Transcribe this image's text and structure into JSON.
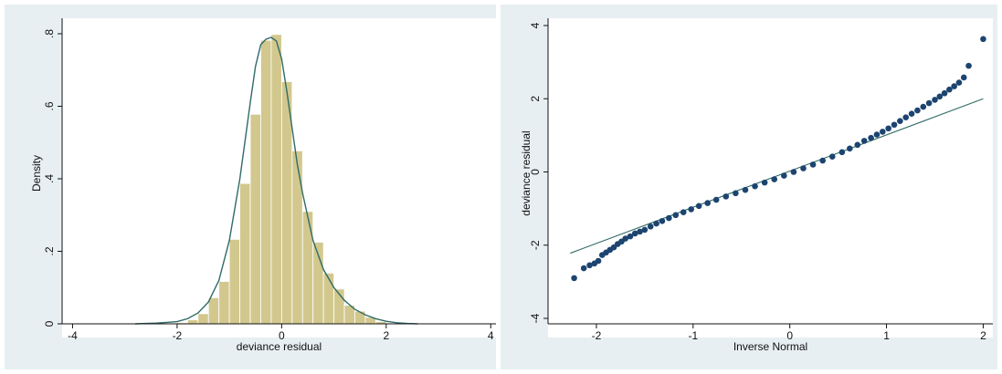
{
  "chart_data": [
    {
      "type": "bar",
      "subtype": "histogram-with-density-curve",
      "title": "",
      "xlabel": "deviance residual",
      "ylabel": "Density",
      "xlim": [
        -4.2,
        4.1
      ],
      "ylim": [
        0,
        0.8
      ],
      "x_ticks": [
        -4,
        -2,
        0,
        2,
        4
      ],
      "x_tick_labels": [
        "-4",
        "-2",
        "0",
        "2",
        "4"
      ],
      "y_ticks": [
        0,
        0.2,
        0.4,
        0.6,
        0.8
      ],
      "y_tick_labels": [
        "0",
        ".2",
        ".4",
        ".6",
        ".8"
      ],
      "grid": false,
      "bar_color": "#d2c88e",
      "bar_edge_color": "#ffffff",
      "curve_color": "#2f6b66",
      "bins": [
        {
          "x0": -2.0,
          "x1": -1.8,
          "density": 0.003
        },
        {
          "x0": -1.8,
          "x1": -1.6,
          "density": 0.011
        },
        {
          "x0": -1.6,
          "x1": -1.4,
          "density": 0.028
        },
        {
          "x0": -1.4,
          "x1": -1.2,
          "density": 0.072
        },
        {
          "x0": -1.2,
          "x1": -1.0,
          "density": 0.117
        },
        {
          "x0": -1.0,
          "x1": -0.8,
          "density": 0.233
        },
        {
          "x0": -0.8,
          "x1": -0.6,
          "density": 0.387
        },
        {
          "x0": -0.6,
          "x1": -0.4,
          "density": 0.578
        },
        {
          "x0": -0.4,
          "x1": -0.2,
          "density": 0.782
        },
        {
          "x0": -0.2,
          "x1": 0.0,
          "density": 0.798
        },
        {
          "x0": 0.0,
          "x1": 0.2,
          "density": 0.668
        },
        {
          "x0": 0.2,
          "x1": 0.4,
          "density": 0.477
        },
        {
          "x0": 0.4,
          "x1": 0.6,
          "density": 0.31
        },
        {
          "x0": 0.6,
          "x1": 0.8,
          "density": 0.225
        },
        {
          "x0": 0.8,
          "x1": 1.0,
          "density": 0.14
        },
        {
          "x0": 1.0,
          "x1": 1.2,
          "density": 0.096
        },
        {
          "x0": 1.2,
          "x1": 1.4,
          "density": 0.051
        },
        {
          "x0": 1.4,
          "x1": 1.6,
          "density": 0.035
        },
        {
          "x0": 1.6,
          "x1": 1.8,
          "density": 0.018
        },
        {
          "x0": 1.8,
          "x1": 2.0,
          "density": 0.006
        }
      ],
      "density_curve": {
        "x": [
          -2.8,
          -2.4,
          -2.2,
          -2.0,
          -1.8,
          -1.6,
          -1.4,
          -1.2,
          -1.0,
          -0.8,
          -0.6,
          -0.5,
          -0.4,
          -0.3,
          -0.2,
          -0.1,
          0.0,
          0.1,
          0.2,
          0.3,
          0.4,
          0.6,
          0.8,
          1.0,
          1.2,
          1.4,
          1.6,
          1.8,
          2.0,
          2.2,
          2.4,
          2.6
        ],
        "y": [
          0.0,
          0.002,
          0.004,
          0.006,
          0.014,
          0.03,
          0.06,
          0.12,
          0.23,
          0.4,
          0.61,
          0.71,
          0.77,
          0.785,
          0.79,
          0.78,
          0.73,
          0.64,
          0.54,
          0.44,
          0.36,
          0.23,
          0.15,
          0.1,
          0.065,
          0.04,
          0.025,
          0.014,
          0.007,
          0.003,
          0.001,
          0.0
        ]
      }
    },
    {
      "type": "scatter",
      "subtype": "normal-qq-plot",
      "title": "",
      "xlabel": "Inverse Normal",
      "ylabel": "deviance residual",
      "xlim": [
        -2.5,
        2.1
      ],
      "ylim": [
        -4.05,
        4.05
      ],
      "x_ticks": [
        -2,
        -1,
        0,
        1,
        2
      ],
      "x_tick_labels": [
        "-2",
        "-1",
        "0",
        "1",
        "2"
      ],
      "y_ticks": [
        -4,
        -2,
        0,
        2,
        4
      ],
      "y_tick_labels": [
        "-4",
        "-2",
        "0",
        "2",
        "4"
      ],
      "grid": false,
      "point_color": "#1d4470",
      "line_color": "#2f6b66",
      "reference_line": {
        "x": [
          -2.27,
          2.0
        ],
        "y": [
          -2.22,
          2.0
        ]
      },
      "points": {
        "x": [
          -2.23,
          -2.13,
          -2.07,
          -2.02,
          -1.98,
          -1.94,
          -1.9,
          -1.86,
          -1.82,
          -1.78,
          -1.74,
          -1.7,
          -1.65,
          -1.6,
          -1.55,
          -1.5,
          -1.44,
          -1.38,
          -1.32,
          -1.25,
          -1.18,
          -1.1,
          -1.02,
          -0.94,
          -0.85,
          -0.76,
          -0.66,
          -0.56,
          -0.46,
          -0.36,
          -0.26,
          -0.16,
          -0.06,
          0.04,
          0.14,
          0.24,
          0.34,
          0.44,
          0.54,
          0.62,
          0.7,
          0.77,
          0.84,
          0.9,
          0.96,
          1.02,
          1.08,
          1.14,
          1.2,
          1.26,
          1.32,
          1.38,
          1.44,
          1.5,
          1.55,
          1.6,
          1.65,
          1.7,
          1.75,
          1.8,
          1.85,
          2.0
        ],
        "y": [
          -2.9,
          -2.63,
          -2.55,
          -2.5,
          -2.43,
          -2.27,
          -2.2,
          -2.13,
          -2.06,
          -1.97,
          -1.9,
          -1.82,
          -1.76,
          -1.68,
          -1.63,
          -1.58,
          -1.49,
          -1.41,
          -1.34,
          -1.26,
          -1.18,
          -1.1,
          -1.02,
          -0.93,
          -0.85,
          -0.76,
          -0.67,
          -0.58,
          -0.49,
          -0.39,
          -0.29,
          -0.2,
          -0.1,
          0.0,
          0.1,
          0.2,
          0.31,
          0.42,
          0.54,
          0.64,
          0.74,
          0.85,
          0.93,
          1.02,
          1.1,
          1.19,
          1.29,
          1.39,
          1.49,
          1.59,
          1.68,
          1.78,
          1.88,
          1.97,
          2.06,
          2.15,
          2.25,
          2.34,
          2.44,
          2.58,
          2.9,
          3.63
        ]
      }
    }
  ]
}
